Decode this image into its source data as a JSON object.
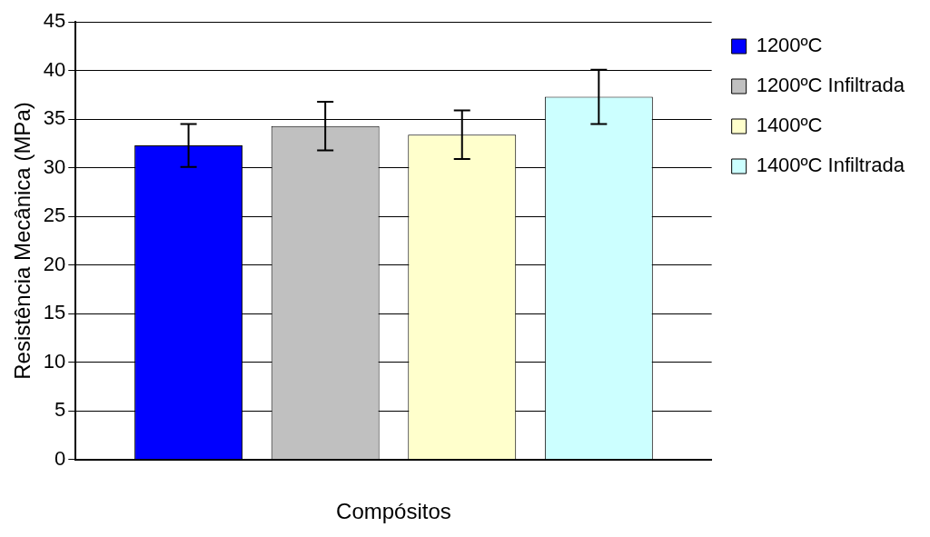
{
  "chart_data": {
    "type": "bar",
    "ylabel": "Resistência Mecânica (MPa)",
    "xlabel": "Compósitos",
    "categories": [
      null
    ],
    "series": [
      {
        "name": "1200ºC",
        "color": "#0000ff",
        "values": [
          32.3
        ],
        "errors": [
          2.2
        ]
      },
      {
        "name": "1200ºC Infiltrada",
        "color": "#c0c0c0",
        "values": [
          34.3
        ],
        "errors": [
          2.5
        ]
      },
      {
        "name": "1400ºC",
        "color": "#ffffcc",
        "values": [
          33.4
        ],
        "errors": [
          2.5
        ]
      },
      {
        "name": "1400ºC Infiltrada",
        "color": "#ccffff",
        "values": [
          37.3
        ],
        "errors": [
          2.8
        ]
      }
    ],
    "ylim": [
      0,
      45
    ],
    "yticks": [
      0,
      5,
      10,
      15,
      20,
      25,
      30,
      35,
      40,
      45
    ],
    "grid": "y",
    "legend": "right"
  }
}
